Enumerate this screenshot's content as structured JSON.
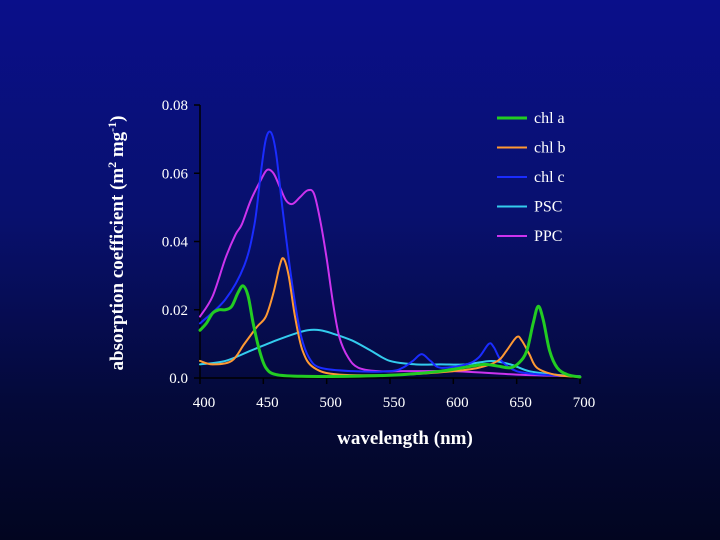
{
  "chart_data": {
    "type": "line",
    "xlabel": "wavelength (nm)",
    "ylabel": "absorption coefficient (m",
    "ylabel_sup1": "2",
    "ylabel_mid": " mg",
    "ylabel_sup2": "-1",
    "ylabel_end": ")",
    "xlim": [
      400,
      700
    ],
    "ylim": [
      0,
      0.08
    ],
    "xticks": [
      400,
      450,
      500,
      550,
      600,
      650,
      700
    ],
    "xtick_labels": [
      "400",
      "450",
      "500",
      "550",
      "600",
      "650",
      "700"
    ],
    "yticks": [
      0,
      0.02,
      0.04,
      0.06,
      0.08
    ],
    "ytick_labels": [
      "0.0",
      "0.02",
      "0.04",
      "0.06",
      "0.08"
    ],
    "grid": false,
    "legend_position": "top-right",
    "series": [
      {
        "name": "chl a",
        "color": "#22cc22",
        "points": [
          [
            400,
            0.014
          ],
          [
            405,
            0.016
          ],
          [
            410,
            0.019
          ],
          [
            415,
            0.02
          ],
          [
            420,
            0.02
          ],
          [
            425,
            0.021
          ],
          [
            430,
            0.025
          ],
          [
            434,
            0.027
          ],
          [
            438,
            0.024
          ],
          [
            442,
            0.016
          ],
          [
            447,
            0.008
          ],
          [
            452,
            0.003
          ],
          [
            460,
            0.001
          ],
          [
            480,
            0.0005
          ],
          [
            520,
            0.0005
          ],
          [
            560,
            0.001
          ],
          [
            590,
            0.002
          ],
          [
            615,
            0.0035
          ],
          [
            625,
            0.004
          ],
          [
            635,
            0.0035
          ],
          [
            645,
            0.003
          ],
          [
            652,
            0.0045
          ],
          [
            658,
            0.008
          ],
          [
            663,
            0.016
          ],
          [
            667,
            0.021
          ],
          [
            671,
            0.017
          ],
          [
            676,
            0.008
          ],
          [
            682,
            0.003
          ],
          [
            690,
            0.001
          ],
          [
            700,
            0.0003
          ]
        ]
      },
      {
        "name": "chl b",
        "color": "#ff9933",
        "points": [
          [
            400,
            0.005
          ],
          [
            410,
            0.004
          ],
          [
            425,
            0.005
          ],
          [
            435,
            0.01
          ],
          [
            445,
            0.015
          ],
          [
            452,
            0.018
          ],
          [
            458,
            0.025
          ],
          [
            463,
            0.033
          ],
          [
            466,
            0.035
          ],
          [
            470,
            0.03
          ],
          [
            475,
            0.018
          ],
          [
            481,
            0.008
          ],
          [
            490,
            0.003
          ],
          [
            510,
            0.001
          ],
          [
            560,
            0.001
          ],
          [
            600,
            0.002
          ],
          [
            620,
            0.003
          ],
          [
            635,
            0.005
          ],
          [
            642,
            0.008
          ],
          [
            650,
            0.012
          ],
          [
            654,
            0.011
          ],
          [
            660,
            0.007
          ],
          [
            666,
            0.003
          ],
          [
            680,
            0.001
          ],
          [
            700,
            0.0003
          ]
        ]
      },
      {
        "name": "chl c",
        "color": "#1a2cff",
        "points": [
          [
            400,
            0.016
          ],
          [
            420,
            0.023
          ],
          [
            435,
            0.033
          ],
          [
            443,
            0.045
          ],
          [
            448,
            0.06
          ],
          [
            452,
            0.07
          ],
          [
            456,
            0.072
          ],
          [
            460,
            0.066
          ],
          [
            465,
            0.05
          ],
          [
            470,
            0.035
          ],
          [
            475,
            0.022
          ],
          [
            480,
            0.012
          ],
          [
            486,
            0.006
          ],
          [
            495,
            0.003
          ],
          [
            520,
            0.002
          ],
          [
            550,
            0.002
          ],
          [
            560,
            0.003
          ],
          [
            568,
            0.005
          ],
          [
            575,
            0.007
          ],
          [
            582,
            0.005
          ],
          [
            590,
            0.003
          ],
          [
            610,
            0.004
          ],
          [
            620,
            0.006
          ],
          [
            628,
            0.01
          ],
          [
            632,
            0.009
          ],
          [
            638,
            0.005
          ],
          [
            650,
            0.002
          ],
          [
            670,
            0.001
          ],
          [
            700,
            0.0005
          ]
        ]
      },
      {
        "name": "PSC",
        "color": "#33ccee",
        "points": [
          [
            400,
            0.004
          ],
          [
            420,
            0.005
          ],
          [
            440,
            0.008
          ],
          [
            460,
            0.011
          ],
          [
            475,
            0.013
          ],
          [
            485,
            0.014
          ],
          [
            495,
            0.014
          ],
          [
            505,
            0.013
          ],
          [
            520,
            0.011
          ],
          [
            535,
            0.008
          ],
          [
            550,
            0.005
          ],
          [
            570,
            0.004
          ],
          [
            590,
            0.004
          ],
          [
            610,
            0.004
          ],
          [
            630,
            0.005
          ],
          [
            645,
            0.004
          ],
          [
            660,
            0.002
          ],
          [
            680,
            0.001
          ],
          [
            700,
            0.0005
          ]
        ]
      },
      {
        "name": "PPC",
        "color": "#cc33ee",
        "points": [
          [
            400,
            0.018
          ],
          [
            410,
            0.024
          ],
          [
            420,
            0.035
          ],
          [
            428,
            0.042
          ],
          [
            433,
            0.045
          ],
          [
            440,
            0.052
          ],
          [
            448,
            0.058
          ],
          [
            453,
            0.061
          ],
          [
            458,
            0.06
          ],
          [
            463,
            0.056
          ],
          [
            468,
            0.052
          ],
          [
            473,
            0.051
          ],
          [
            479,
            0.053
          ],
          [
            485,
            0.055
          ],
          [
            490,
            0.054
          ],
          [
            495,
            0.046
          ],
          [
            500,
            0.035
          ],
          [
            505,
            0.022
          ],
          [
            510,
            0.012
          ],
          [
            517,
            0.006
          ],
          [
            525,
            0.003
          ],
          [
            540,
            0.002
          ],
          [
            560,
            0.002
          ],
          [
            600,
            0.002
          ],
          [
            650,
            0.001
          ],
          [
            700,
            0.0005
          ]
        ]
      }
    ]
  }
}
